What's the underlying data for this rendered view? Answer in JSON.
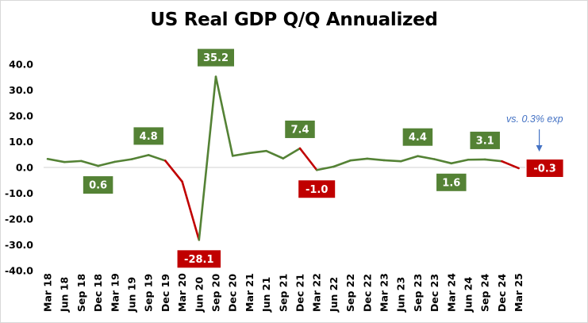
{
  "chart_data": {
    "type": "line",
    "title": "US Real GDP Q/Q Annualized",
    "xlabel": "",
    "ylabel": "",
    "ylim": [
      -40,
      40
    ],
    "yticks": [
      "40.0",
      "30.0",
      "20.0",
      "10.0",
      "0.0",
      "-10.0",
      "-20.0",
      "-30.0",
      "-40.0"
    ],
    "grid": false,
    "categories": [
      "Mar 18",
      "Jun 18",
      "Sep 18",
      "Dec 18",
      "Mar 19",
      "Jun 19",
      "Sep 19",
      "Dec 19",
      "Mar 20",
      "Jun 20",
      "Sep 20",
      "Dec 20",
      "Mar 21",
      "Jun 21",
      "Sep 21",
      "Dec 21",
      "Mar 22",
      "Jun 22",
      "Sep 22",
      "Dec 22",
      "Mar 23",
      "Jun 23",
      "Sep 23",
      "Dec 23",
      "Mar 24",
      "Jun 24",
      "Sep 24",
      "Dec 24",
      "Mar 25"
    ],
    "values": [
      3.3,
      2.1,
      2.5,
      0.6,
      2.2,
      3.2,
      4.8,
      2.6,
      -5.5,
      -28.1,
      35.2,
      4.5,
      5.6,
      6.4,
      3.5,
      7.4,
      -1.0,
      0.3,
      2.7,
      3.4,
      2.8,
      2.4,
      4.4,
      3.2,
      1.6,
      3.0,
      3.1,
      2.4,
      -0.3
    ],
    "colors": {
      "positive": "#548235",
      "negative": "#c00000",
      "zero_line": "#d0d0d0",
      "annotation": "#4472c4"
    },
    "data_labels": [
      {
        "index": 3,
        "text": "0.6",
        "position": "below"
      },
      {
        "index": 6,
        "text": "4.8",
        "position": "above"
      },
      {
        "index": 9,
        "text": "-28.1",
        "position": "below"
      },
      {
        "index": 10,
        "text": "35.2",
        "position": "above"
      },
      {
        "index": 15,
        "text": "7.4",
        "position": "above"
      },
      {
        "index": 16,
        "text": "-1.0",
        "position": "below"
      },
      {
        "index": 22,
        "text": "4.4",
        "position": "above"
      },
      {
        "index": 24,
        "text": "1.6",
        "position": "below"
      },
      {
        "index": 26,
        "text": "3.1",
        "position": "above"
      },
      {
        "index": 28,
        "text": "-0.3",
        "position": "right"
      }
    ],
    "annotation": {
      "text": "vs. 0.3% exp",
      "target_index": 28,
      "arrow": "down"
    }
  }
}
